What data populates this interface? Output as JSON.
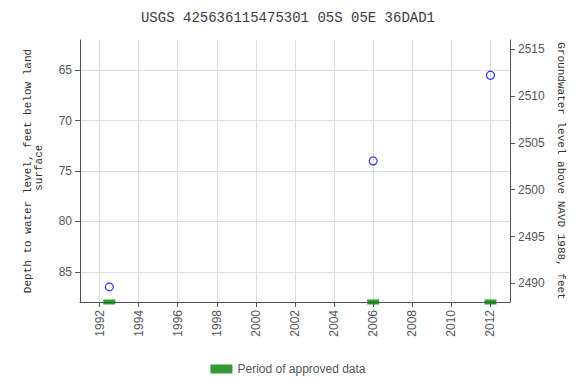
{
  "chart_data": {
    "type": "scatter",
    "title": "USGS 425636115475301 05S 05E 36DAD1",
    "series": [
      {
        "type": "scatter",
        "marker": "open circle",
        "color": "#0000ff",
        "x": [
          1992.5,
          2006.0,
          2012.0
        ],
        "values": [
          86.5,
          74.0,
          65.5
        ]
      },
      {
        "type": "scatter",
        "marker": "bar",
        "name": "Period of approved data",
        "color": "#008000",
        "x": [
          1992.5,
          2006.0,
          2012.0
        ]
      }
    ],
    "xlim": [
      1991,
      2013
    ],
    "xticks": [
      1992,
      1994,
      1996,
      1998,
      2000,
      2002,
      2004,
      2006,
      2008,
      2010,
      2012
    ],
    "ylim": [
      88,
      62
    ],
    "yticks": [
      65,
      70,
      75,
      80,
      85
    ],
    "y2lim": [
      2488,
      2516
    ],
    "y2ticks": [
      2490,
      2495,
      2500,
      2505,
      2510,
      2515
    ],
    "ylabel": "Depth to water level, feet below land\n surface",
    "y2label": "Groundwater level above NAVD 1988, feet",
    "grid": true,
    "legend": "bottom"
  }
}
